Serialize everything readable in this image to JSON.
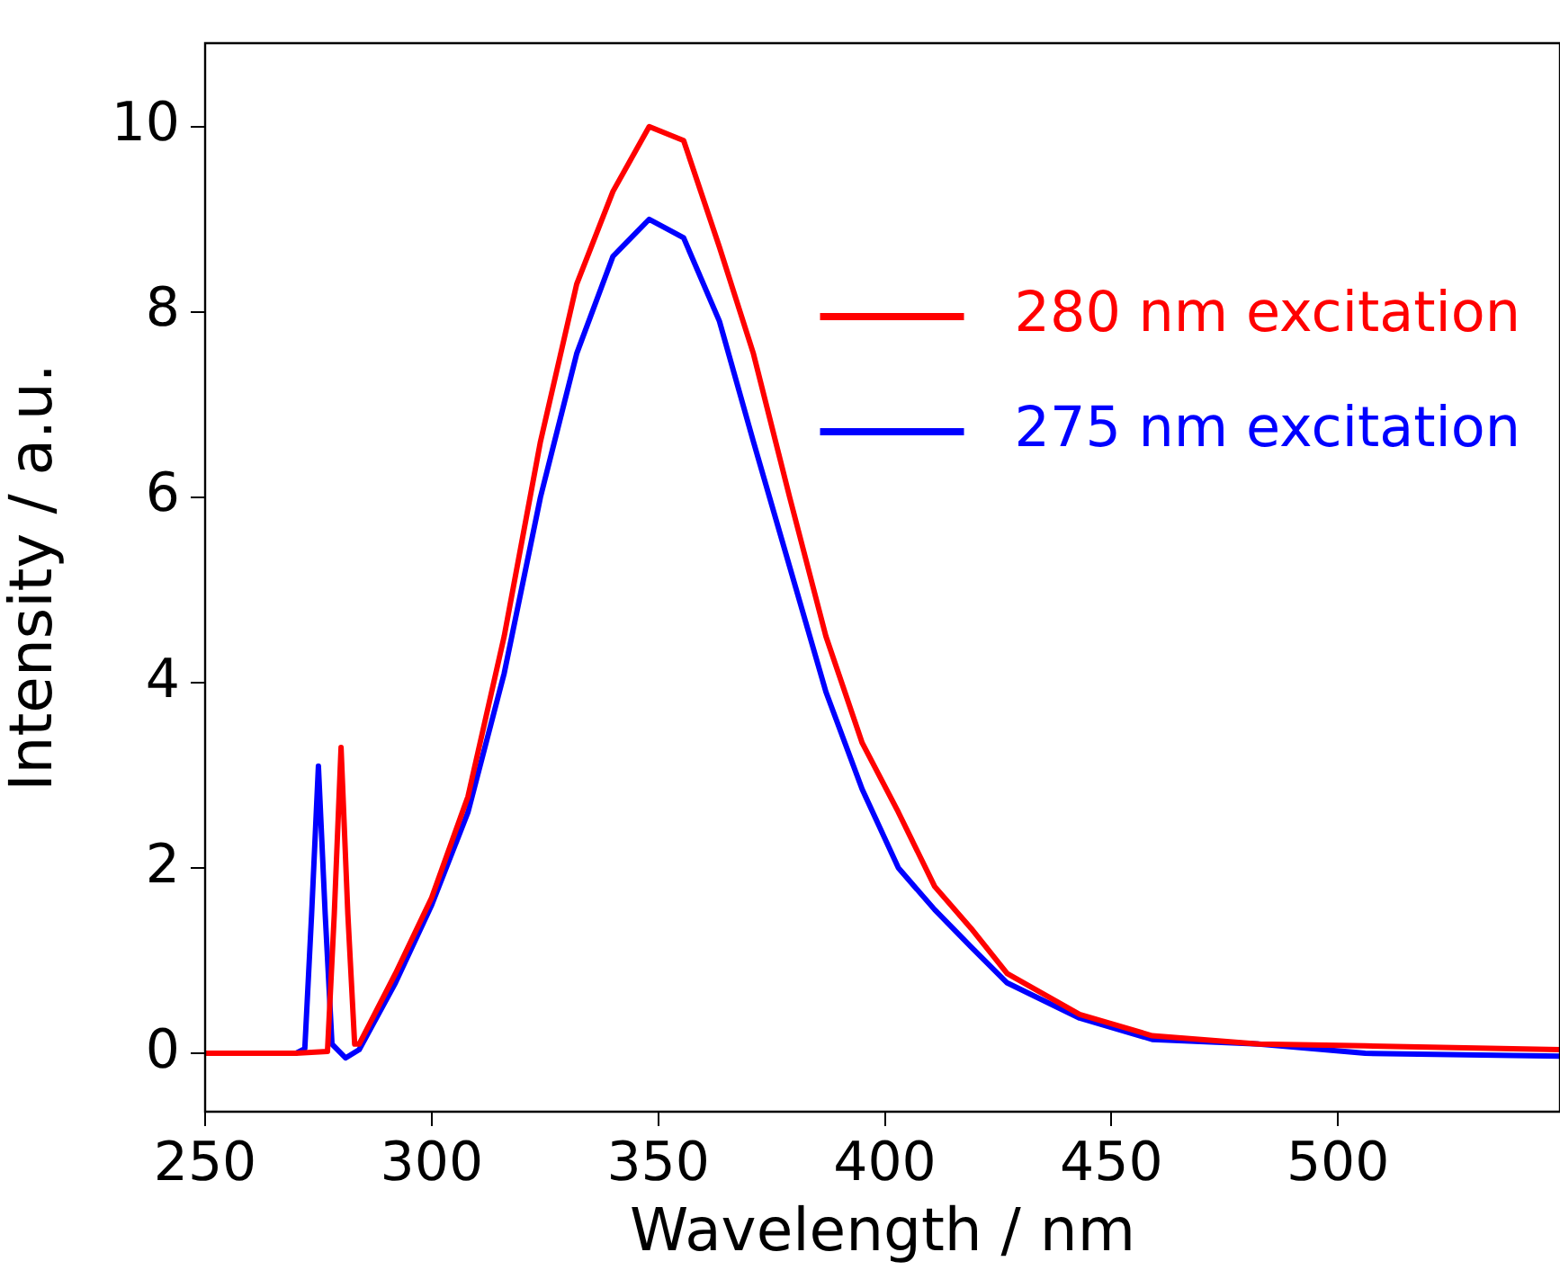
{
  "chart_data": {
    "type": "line",
    "xlabel": "Wavelength / nm",
    "ylabel": "Intensity / a.u.",
    "xlim": [
      250,
      549
    ],
    "xticks": [
      250,
      300,
      350,
      400,
      450,
      500
    ],
    "ylim": [
      -0.63,
      10.9
    ],
    "yticks": [
      0,
      2,
      4,
      6,
      8,
      10
    ],
    "legend": "top right",
    "marker": "none",
    "line_style": "solid",
    "series": [
      {
        "name": "280 nm excitation",
        "color": "#ff0000",
        "x": [
          250,
          260,
          270,
          277,
          278.5,
          280,
          281.5,
          283,
          284,
          292,
          300,
          308,
          316,
          324,
          332,
          340,
          348,
          355.6,
          363.5,
          371,
          379,
          387,
          395,
          403,
          411,
          419,
          427,
          443,
          459,
          482.5,
          506,
          549
        ],
        "values": [
          0,
          0,
          0,
          0.02,
          1.5,
          3.3,
          1.5,
          0.1,
          0.1,
          0.86,
          1.68,
          2.77,
          4.5,
          6.6,
          8.3,
          9.3,
          10.0,
          9.85,
          8.7,
          7.55,
          6.0,
          4.5,
          3.35,
          2.6,
          1.8,
          1.35,
          0.86,
          0.42,
          0.19,
          0.1,
          0.08,
          0.04
        ]
      },
      {
        "name": "275 nm excitation",
        "color": "#0000ff",
        "x": [
          250,
          260,
          270,
          272,
          273.5,
          275,
          276.5,
          278,
          281,
          284,
          292,
          300,
          308,
          316,
          324,
          332,
          340,
          348,
          355.6,
          363.5,
          371,
          379,
          387,
          395,
          403,
          411,
          419,
          427,
          443,
          459,
          482.5,
          506,
          549
        ],
        "values": [
          0,
          0,
          0,
          0.05,
          1.5,
          3.1,
          1.5,
          0.1,
          -0.05,
          0.04,
          0.76,
          1.6,
          2.6,
          4.1,
          6.0,
          7.55,
          8.6,
          9.0,
          8.8,
          7.9,
          6.6,
          5.25,
          3.9,
          2.85,
          2.0,
          1.55,
          1.15,
          0.76,
          0.38,
          0.15,
          0.1,
          0.0,
          -0.03
        ]
      }
    ]
  }
}
